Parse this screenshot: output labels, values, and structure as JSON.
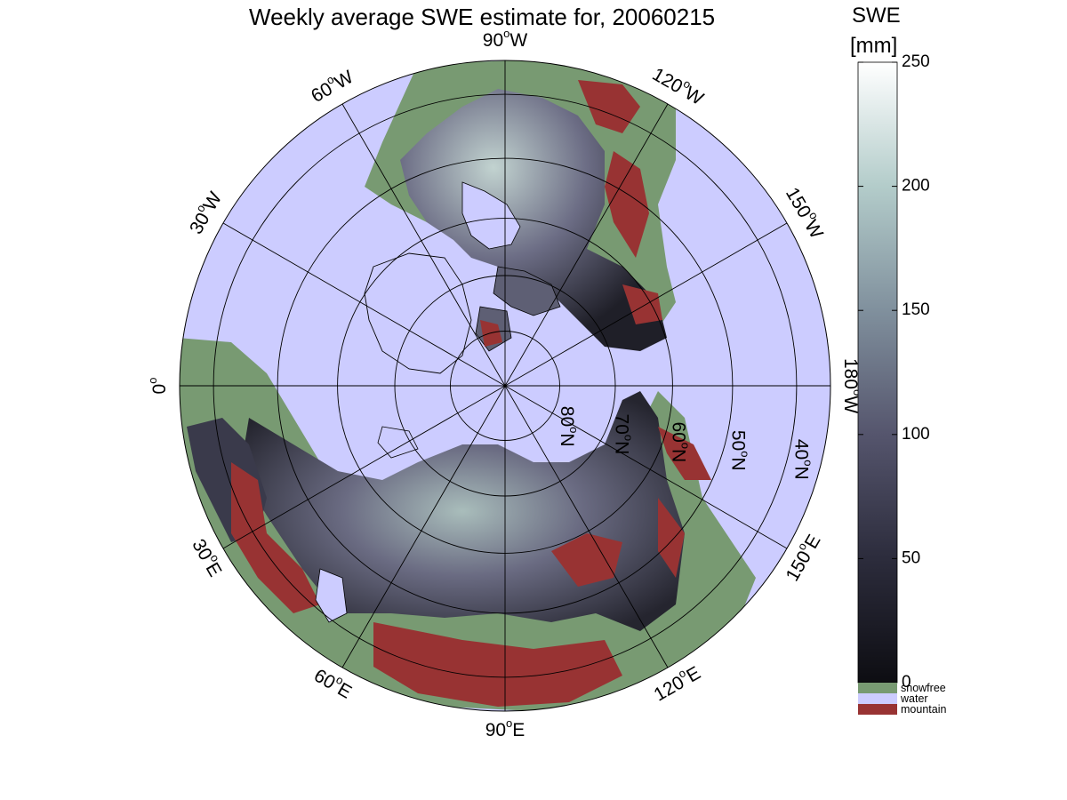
{
  "title": "Weekly average SWE estimate for, 20060215",
  "colorbar": {
    "title": "SWE",
    "unit": "[mm]",
    "ticks": [
      "0",
      "50",
      "100",
      "150",
      "200",
      "250"
    ],
    "tick_values": [
      0,
      50,
      100,
      150,
      200,
      250
    ],
    "range": [
      0,
      250
    ],
    "gradient": [
      "#0d0d12",
      "#2c2c3c",
      "#55556d",
      "#80909d",
      "#b3ccca",
      "#ffffff"
    ],
    "categories": [
      {
        "label": "snowfree",
        "color": "#789a72"
      },
      {
        "label": "water",
        "color": "#ccccff"
      },
      {
        "label": "mountain",
        "color": "#983333"
      }
    ]
  },
  "map": {
    "projection": "north-polar-stereographic",
    "ocean_color": "#ccccff",
    "snowfree_color": "#789a72",
    "mountain_color": "#983333",
    "longitude_labels": [
      {
        "text": "90°W",
        "base": "90",
        "sup": "o",
        "hemi": "W",
        "angle_deg": 90
      },
      {
        "text": "120°W",
        "base": "120",
        "sup": "o",
        "hemi": "W",
        "angle_deg": 60
      },
      {
        "text": "150°W",
        "base": "150",
        "sup": "o",
        "hemi": "W",
        "angle_deg": 30
      },
      {
        "text": "180°W",
        "base": "180",
        "sup": "o",
        "hemi": "W",
        "angle_deg": 0
      },
      {
        "text": "150°E",
        "base": "150",
        "sup": "o",
        "hemi": "E",
        "angle_deg": -30
      },
      {
        "text": "120°E",
        "base": "120",
        "sup": "o",
        "hemi": "E",
        "angle_deg": -60
      },
      {
        "text": "90°E",
        "base": "90",
        "sup": "o",
        "hemi": "E",
        "angle_deg": -90
      },
      {
        "text": "60°E",
        "base": "60",
        "sup": "o",
        "hemi": "E",
        "angle_deg": -120
      },
      {
        "text": "30°E",
        "base": "30",
        "sup": "o",
        "hemi": "E",
        "angle_deg": -150
      },
      {
        "text": "0°",
        "base": "0",
        "sup": "o",
        "hemi": "",
        "angle_deg": 180
      },
      {
        "text": "30°W",
        "base": "30",
        "sup": "o",
        "hemi": "W",
        "angle_deg": 150
      },
      {
        "text": "60°W",
        "base": "60",
        "sup": "o",
        "hemi": "W",
        "angle_deg": 120
      }
    ],
    "latitude_labels": [
      {
        "text": "80°N",
        "base": "80",
        "sup": "o",
        "hemi": "N",
        "lat": 80
      },
      {
        "text": "70°N",
        "base": "70",
        "sup": "o",
        "hemi": "N",
        "lat": 70
      },
      {
        "text": "60°N",
        "base": "60",
        "sup": "o",
        "hemi": "N",
        "lat": 60
      },
      {
        "text": "50°N",
        "base": "50",
        "sup": "o",
        "hemi": "N",
        "lat": 50
      },
      {
        "text": "40°N",
        "base": "40",
        "sup": "o",
        "hemi": "N",
        "lat": 40
      }
    ],
    "latitude_circles": [
      80,
      70,
      60,
      50,
      40
    ],
    "meridians_every_deg": 30
  }
}
